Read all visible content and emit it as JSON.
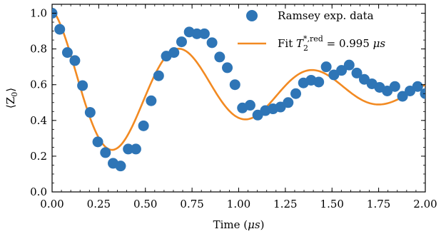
{
  "chart_data": {
    "type": "scatter",
    "xlabel_main": "Time (",
    "xlabel_unit": "μs",
    "xlabel_end": ")",
    "ylabel_main": "⟨Z",
    "ylabel_sub": "0",
    "ylabel_end": "⟩",
    "xlim": [
      0.0,
      2.0
    ],
    "ylim": [
      0.0,
      1.05
    ],
    "xticks": [
      "0.00",
      "0.25",
      "0.50",
      "0.75",
      "1.00",
      "1.25",
      "1.50",
      "1.75",
      "2.00"
    ],
    "yticks": [
      "0.0",
      "0.2",
      "0.4",
      "0.6",
      "0.8",
      "1.0"
    ],
    "legend_position": "top-right",
    "colors": {
      "data": "#2e75b6",
      "fit": "#f28a22"
    },
    "legend": {
      "data_label": "Ramsey exp. data",
      "fit_prefix": "Fit ",
      "fit_symbol": "T",
      "fit_sub": "2",
      "fit_sup": "*,red",
      "fit_value": " = 0.995 ",
      "fit_unit": "μs"
    },
    "series": [
      {
        "name": "Ramsey exp. data",
        "kind": "scatter",
        "x": [
          0.0,
          0.041,
          0.082,
          0.122,
          0.163,
          0.204,
          0.245,
          0.286,
          0.327,
          0.367,
          0.408,
          0.449,
          0.49,
          0.531,
          0.571,
          0.612,
          0.653,
          0.694,
          0.735,
          0.776,
          0.816,
          0.857,
          0.898,
          0.939,
          0.98,
          1.02,
          1.061,
          1.102,
          1.143,
          1.184,
          1.224,
          1.265,
          1.306,
          1.347,
          1.388,
          1.429,
          1.469,
          1.51,
          1.551,
          1.592,
          1.633,
          1.673,
          1.714,
          1.755,
          1.796,
          1.837,
          1.878,
          1.918,
          1.959,
          2.0
        ],
        "y": [
          1.0,
          0.91,
          0.78,
          0.735,
          0.595,
          0.445,
          0.28,
          0.22,
          0.16,
          0.145,
          0.24,
          0.24,
          0.37,
          0.51,
          0.65,
          0.76,
          0.78,
          0.84,
          0.895,
          0.885,
          0.885,
          0.835,
          0.755,
          0.695,
          0.6,
          0.47,
          0.485,
          0.43,
          0.455,
          0.465,
          0.475,
          0.5,
          0.55,
          0.61,
          0.625,
          0.615,
          0.7,
          0.655,
          0.68,
          0.71,
          0.665,
          0.63,
          0.605,
          0.585,
          0.565,
          0.59,
          0.535,
          0.565,
          0.59,
          0.55
        ]
      },
      {
        "name": "Fit",
        "kind": "line",
        "model": {
          "offset": 0.5685,
          "amplitude": 0.4635,
          "T2_star_us": 0.995,
          "frequency_MHz": 1.4,
          "phase_rad": 0.2
        }
      }
    ]
  }
}
